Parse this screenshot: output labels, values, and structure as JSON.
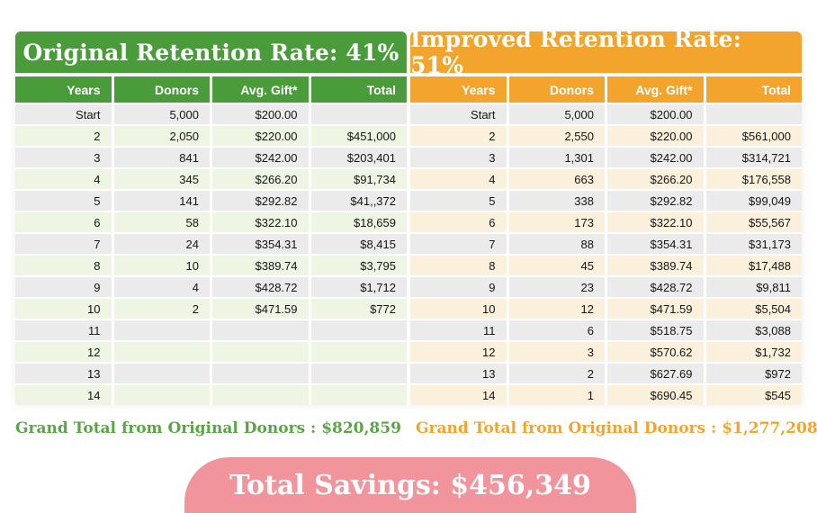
{
  "banner": {
    "total_savings_label": "Total Savings: $456,349"
  },
  "colors": {
    "green_accent": "#4a9b3a",
    "orange_accent": "#f2a42c",
    "pink_banner": "#f2949b",
    "stripe_gray": "#ebebeb",
    "stripe_green": "#eef5e3",
    "stripe_cream": "#faf0dc",
    "green_footer_text": "#5ba447",
    "orange_footer_text": "#f2a42c"
  },
  "chart_data": [
    {
      "type": "table",
      "title": "Original Retention Rate: 41%",
      "retention_rate_percent": 41,
      "theme_color": "#4a9b3a",
      "columns": [
        "Years",
        "Donors",
        "Avg. Gift*",
        "Total"
      ],
      "rows": [
        [
          "Start",
          "5,000",
          "$200.00",
          ""
        ],
        [
          "2",
          "2,050",
          "$220.00",
          "$451,000"
        ],
        [
          "3",
          "841",
          "$242.00",
          "$203,401"
        ],
        [
          "4",
          "345",
          "$266.20",
          "$91,734"
        ],
        [
          "5",
          "141",
          "$292.82",
          "$41,,372"
        ],
        [
          "6",
          "58",
          "$322.10",
          "$18,659"
        ],
        [
          "7",
          "24",
          "$354.31",
          "$8,415"
        ],
        [
          "8",
          "10",
          "$389.74",
          "$3,795"
        ],
        [
          "9",
          "4",
          "$428.72",
          "$1,712"
        ],
        [
          "10",
          "2",
          "$471.59",
          "$772"
        ],
        [
          "11",
          "",
          "",
          ""
        ],
        [
          "12",
          "",
          "",
          ""
        ],
        [
          "13",
          "",
          "",
          ""
        ],
        [
          "14",
          "",
          "",
          ""
        ]
      ],
      "grand_total": "Grand Total from Original Donors : $820,859"
    },
    {
      "type": "table",
      "title": "Improved Retention Rate: 51%",
      "retention_rate_percent": 51,
      "theme_color": "#f2a42c",
      "columns": [
        "Years",
        "Donors",
        "Avg. Gift*",
        "Total"
      ],
      "rows": [
        [
          "Start",
          "5,000",
          "$200.00",
          ""
        ],
        [
          "2",
          "2,550",
          "$220.00",
          "$561,000"
        ],
        [
          "3",
          "1,301",
          "$242.00",
          "$314,721"
        ],
        [
          "4",
          "663",
          "$266.20",
          "$176,558"
        ],
        [
          "5",
          "338",
          "$292.82",
          "$99,049"
        ],
        [
          "6",
          "173",
          "$322.10",
          "$55,567"
        ],
        [
          "7",
          "88",
          "$354.31",
          "$31,173"
        ],
        [
          "8",
          "45",
          "$389.74",
          "$17,488"
        ],
        [
          "9",
          "23",
          "$428.72",
          "$9,811"
        ],
        [
          "10",
          "12",
          "$471.59",
          "$5,504"
        ],
        [
          "11",
          "6",
          "$518.75",
          "$3,088"
        ],
        [
          "12",
          "3",
          "$570.62",
          "$1,732"
        ],
        [
          "13",
          "2",
          "$627.69",
          "$972"
        ],
        [
          "14",
          "1",
          "$690.45",
          "$545"
        ]
      ],
      "grand_total": "Grand Total from Original Donors : $1,277,208"
    }
  ]
}
